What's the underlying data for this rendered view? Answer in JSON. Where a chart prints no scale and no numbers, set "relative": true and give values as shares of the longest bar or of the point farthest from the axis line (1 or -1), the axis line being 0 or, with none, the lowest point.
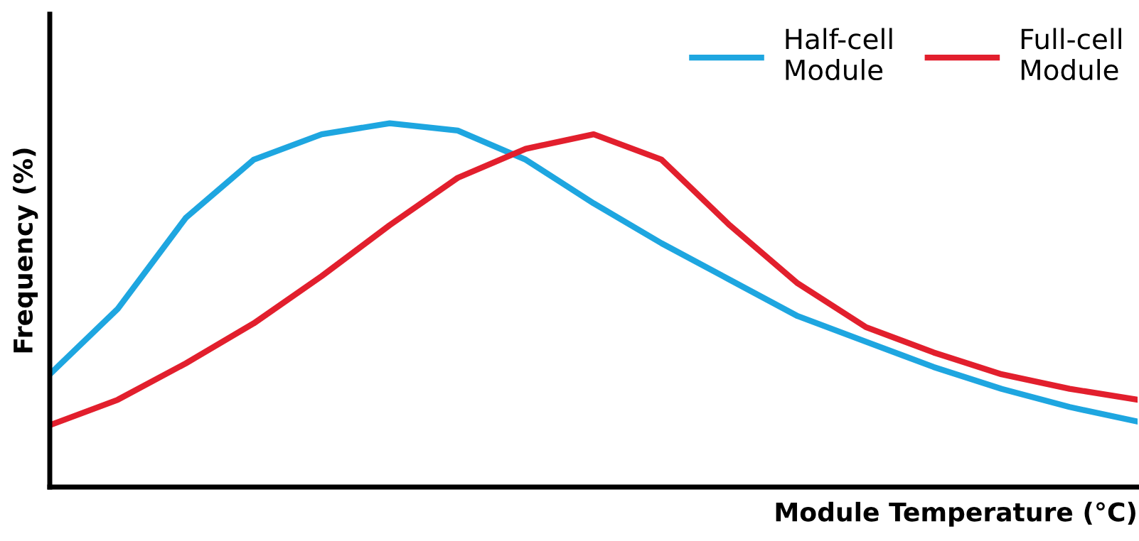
{
  "chart_data": {
    "type": "line",
    "relative": true,
    "xlabel": "Module Temperature (°C)",
    "ylabel": "Frequency (%)",
    "categories": [
      null,
      null,
      null,
      null,
      null,
      null,
      null,
      null,
      null,
      null,
      null,
      null,
      null,
      null,
      null,
      null,
      null
    ],
    "series": [
      {
        "name": "Half-cell\nModule",
        "color": "#1ea6e0",
        "values": [
          0.31,
          0.49,
          0.74,
          0.9,
          0.97,
          1.0,
          0.98,
          0.9,
          0.78,
          0.67,
          0.57,
          0.47,
          0.4,
          0.33,
          0.27,
          0.22,
          0.18
        ]
      },
      {
        "name": "Full-cell\nModule",
        "color": "#e21f2d",
        "values": [
          0.17,
          0.24,
          0.34,
          0.45,
          0.58,
          0.72,
          0.85,
          0.93,
          0.97,
          0.9,
          0.72,
          0.56,
          0.44,
          0.37,
          0.31,
          0.27,
          0.24
        ]
      }
    ],
    "legend": "top right",
    "grid": false,
    "marker": "none",
    "line_style": "solid"
  }
}
